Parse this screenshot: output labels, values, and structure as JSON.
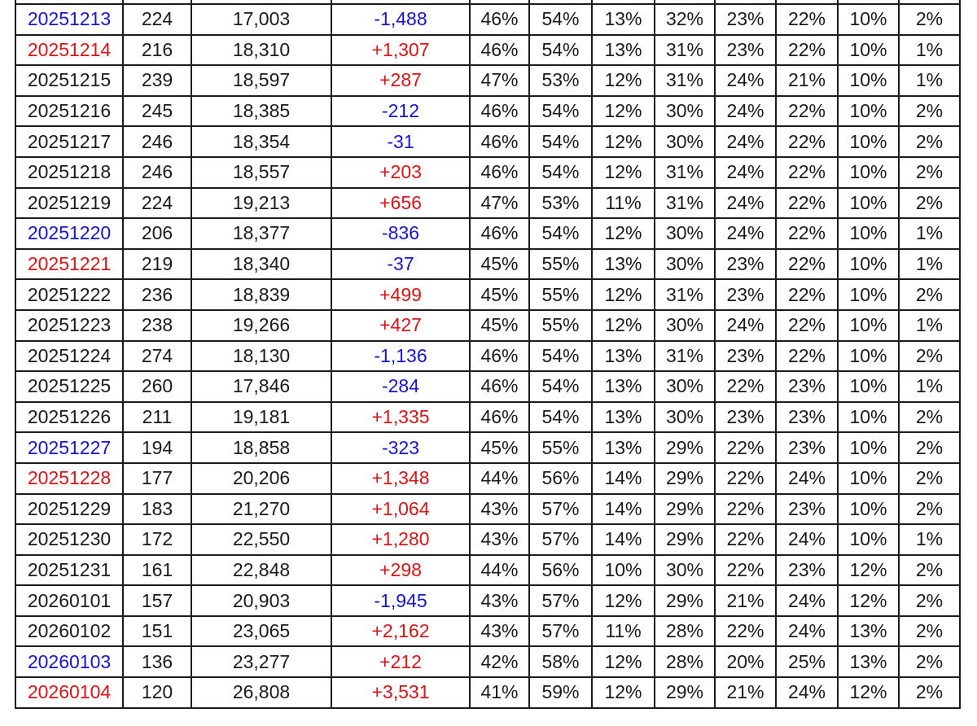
{
  "colors": {
    "background": "#ffffff",
    "text": "#1a1a1a",
    "border": "#1c1c1c",
    "weekend_saturday_and_negative": "#1414d6",
    "weekend_sunday_and_positive": "#dc1414",
    "blue": "#1414d6",
    "red": "#dc1414"
  },
  "chart_data": {
    "type": "table",
    "title": "",
    "layout": "23 visible rows, 12 columns, no header row visible, table cut off at top edge",
    "rows": [
      {
        "date": "20251213",
        "date_color": "blue",
        "value1": "224",
        "value2": "17,003",
        "change": "-1,488",
        "change_color": "blue",
        "pcts": [
          "46%",
          "54%",
          "13%",
          "32%",
          "23%",
          "22%",
          "10%",
          "2%"
        ]
      },
      {
        "date": "20251214",
        "date_color": "red",
        "value1": "216",
        "value2": "18,310",
        "change": "+1,307",
        "change_color": "red",
        "pcts": [
          "46%",
          "54%",
          "13%",
          "31%",
          "23%",
          "22%",
          "10%",
          "1%"
        ]
      },
      {
        "date": "20251215",
        "date_color": "black",
        "value1": "239",
        "value2": "18,597",
        "change": "+287",
        "change_color": "red",
        "pcts": [
          "47%",
          "53%",
          "12%",
          "31%",
          "24%",
          "21%",
          "10%",
          "1%"
        ]
      },
      {
        "date": "20251216",
        "date_color": "black",
        "value1": "245",
        "value2": "18,385",
        "change": "-212",
        "change_color": "blue",
        "pcts": [
          "46%",
          "54%",
          "12%",
          "30%",
          "24%",
          "22%",
          "10%",
          "2%"
        ]
      },
      {
        "date": "20251217",
        "date_color": "black",
        "value1": "246",
        "value2": "18,354",
        "change": "-31",
        "change_color": "blue",
        "pcts": [
          "46%",
          "54%",
          "12%",
          "30%",
          "24%",
          "22%",
          "10%",
          "2%"
        ]
      },
      {
        "date": "20251218",
        "date_color": "black",
        "value1": "246",
        "value2": "18,557",
        "change": "+203",
        "change_color": "red",
        "pcts": [
          "46%",
          "54%",
          "12%",
          "31%",
          "24%",
          "22%",
          "10%",
          "2%"
        ]
      },
      {
        "date": "20251219",
        "date_color": "black",
        "value1": "224",
        "value2": "19,213",
        "change": "+656",
        "change_color": "red",
        "pcts": [
          "47%",
          "53%",
          "11%",
          "31%",
          "24%",
          "22%",
          "10%",
          "2%"
        ]
      },
      {
        "date": "20251220",
        "date_color": "blue",
        "value1": "206",
        "value2": "18,377",
        "change": "-836",
        "change_color": "blue",
        "pcts": [
          "46%",
          "54%",
          "12%",
          "30%",
          "24%",
          "22%",
          "10%",
          "1%"
        ]
      },
      {
        "date": "20251221",
        "date_color": "red",
        "value1": "219",
        "value2": "18,340",
        "change": "-37",
        "change_color": "blue",
        "pcts": [
          "45%",
          "55%",
          "13%",
          "30%",
          "23%",
          "22%",
          "10%",
          "1%"
        ]
      },
      {
        "date": "20251222",
        "date_color": "black",
        "value1": "236",
        "value2": "18,839",
        "change": "+499",
        "change_color": "red",
        "pcts": [
          "45%",
          "55%",
          "12%",
          "31%",
          "23%",
          "22%",
          "10%",
          "2%"
        ]
      },
      {
        "date": "20251223",
        "date_color": "black",
        "value1": "238",
        "value2": "19,266",
        "change": "+427",
        "change_color": "red",
        "pcts": [
          "45%",
          "55%",
          "12%",
          "30%",
          "24%",
          "22%",
          "10%",
          "1%"
        ]
      },
      {
        "date": "20251224",
        "date_color": "black",
        "value1": "274",
        "value2": "18,130",
        "change": "-1,136",
        "change_color": "blue",
        "pcts": [
          "46%",
          "54%",
          "13%",
          "31%",
          "23%",
          "22%",
          "10%",
          "2%"
        ]
      },
      {
        "date": "20251225",
        "date_color": "black",
        "value1": "260",
        "value2": "17,846",
        "change": "-284",
        "change_color": "blue",
        "pcts": [
          "46%",
          "54%",
          "13%",
          "30%",
          "22%",
          "23%",
          "10%",
          "1%"
        ]
      },
      {
        "date": "20251226",
        "date_color": "black",
        "value1": "211",
        "value2": "19,181",
        "change": "+1,335",
        "change_color": "red",
        "pcts": [
          "46%",
          "54%",
          "13%",
          "30%",
          "23%",
          "23%",
          "10%",
          "2%"
        ]
      },
      {
        "date": "20251227",
        "date_color": "blue",
        "value1": "194",
        "value2": "18,858",
        "change": "-323",
        "change_color": "blue",
        "pcts": [
          "45%",
          "55%",
          "13%",
          "29%",
          "22%",
          "23%",
          "10%",
          "2%"
        ]
      },
      {
        "date": "20251228",
        "date_color": "red",
        "value1": "177",
        "value2": "20,206",
        "change": "+1,348",
        "change_color": "red",
        "pcts": [
          "44%",
          "56%",
          "14%",
          "29%",
          "22%",
          "24%",
          "10%",
          "2%"
        ]
      },
      {
        "date": "20251229",
        "date_color": "black",
        "value1": "183",
        "value2": "21,270",
        "change": "+1,064",
        "change_color": "red",
        "pcts": [
          "43%",
          "57%",
          "14%",
          "29%",
          "22%",
          "23%",
          "10%",
          "2%"
        ]
      },
      {
        "date": "20251230",
        "date_color": "black",
        "value1": "172",
        "value2": "22,550",
        "change": "+1,280",
        "change_color": "red",
        "pcts": [
          "43%",
          "57%",
          "14%",
          "29%",
          "22%",
          "24%",
          "10%",
          "1%"
        ]
      },
      {
        "date": "20251231",
        "date_color": "black",
        "value1": "161",
        "value2": "22,848",
        "change": "+298",
        "change_color": "red",
        "pcts": [
          "44%",
          "56%",
          "10%",
          "30%",
          "22%",
          "23%",
          "12%",
          "2%"
        ]
      },
      {
        "date": "20260101",
        "date_color": "black",
        "value1": "157",
        "value2": "20,903",
        "change": "-1,945",
        "change_color": "blue",
        "pcts": [
          "43%",
          "57%",
          "12%",
          "29%",
          "21%",
          "24%",
          "12%",
          "2%"
        ]
      },
      {
        "date": "20260102",
        "date_color": "black",
        "value1": "151",
        "value2": "23,065",
        "change": "+2,162",
        "change_color": "red",
        "pcts": [
          "43%",
          "57%",
          "11%",
          "28%",
          "22%",
          "24%",
          "13%",
          "2%"
        ]
      },
      {
        "date": "20260103",
        "date_color": "blue",
        "value1": "136",
        "value2": "23,277",
        "change": "+212",
        "change_color": "red",
        "pcts": [
          "42%",
          "58%",
          "12%",
          "28%",
          "20%",
          "25%",
          "13%",
          "2%"
        ]
      },
      {
        "date": "20260104",
        "date_color": "red",
        "value1": "120",
        "value2": "26,808",
        "change": "+3,531",
        "change_color": "red",
        "pcts": [
          "41%",
          "59%",
          "12%",
          "29%",
          "21%",
          "24%",
          "12%",
          "2%"
        ]
      }
    ]
  }
}
